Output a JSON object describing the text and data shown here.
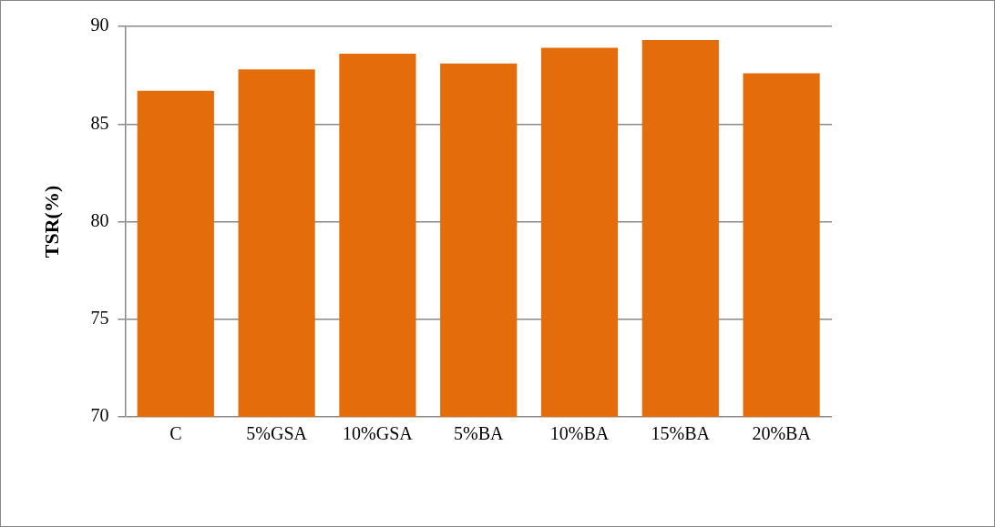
{
  "chart_data": {
    "type": "bar",
    "ylabel": "TSR(%)",
    "categories": [
      "C",
      "5%GSA",
      "10%GSA",
      "5%BA",
      "10%BA",
      "15%BA",
      "20%BA"
    ],
    "values": [
      86.7,
      87.8,
      88.6,
      88.1,
      88.9,
      89.3,
      87.6
    ],
    "color": "#e46c0a",
    "ylim": [
      70,
      90
    ],
    "yticks": [
      70,
      75,
      80,
      85,
      90
    ],
    "grid": "y"
  }
}
